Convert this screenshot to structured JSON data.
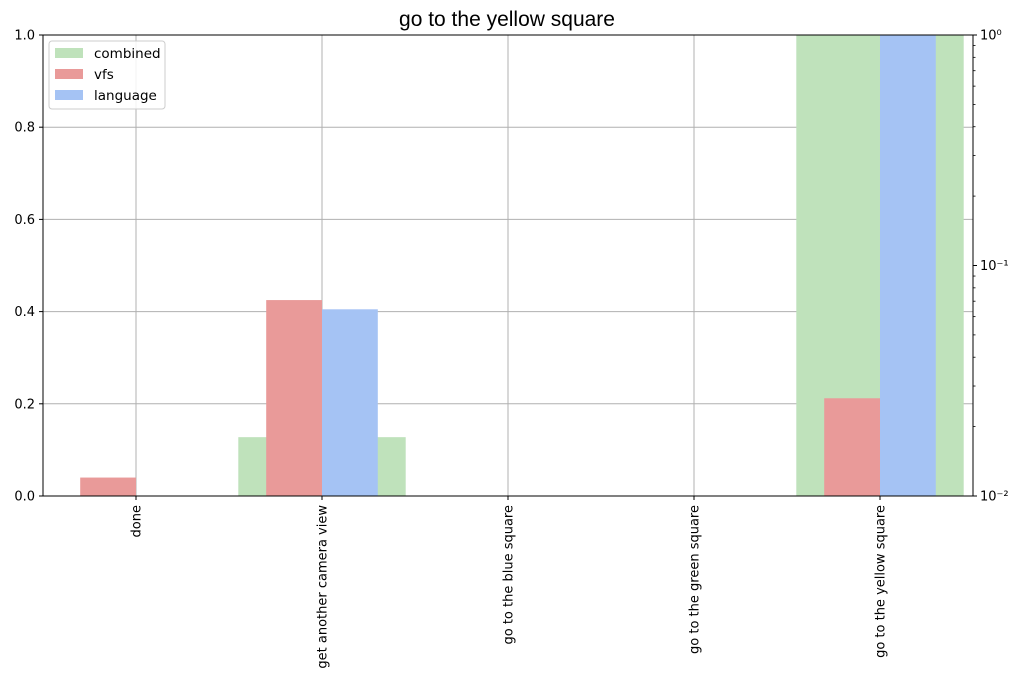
{
  "chart_data": {
    "type": "bar",
    "title": "go to the yellow square",
    "categories": [
      "done",
      "get another camera view",
      "go to the blue square",
      "go to the green square",
      "go to the yellow square"
    ],
    "series": [
      {
        "name": "combined",
        "color": "#bfe2bb",
        "axis": "right",
        "scale": "log",
        "values": [
          0,
          0.018,
          0,
          0,
          1.0
        ]
      },
      {
        "name": "vfs",
        "color": "#e99a99",
        "axis": "left",
        "scale": "linear",
        "values": [
          0.04,
          0.425,
          0,
          0,
          0.212
        ]
      },
      {
        "name": "language",
        "color": "#a5c3f4",
        "axis": "left",
        "scale": "linear",
        "values": [
          0,
          0.405,
          0,
          0,
          1.0
        ]
      }
    ],
    "y_left": {
      "ylim": [
        0,
        1.0
      ],
      "ticks": [
        "0.0",
        "0.2",
        "0.4",
        "0.6",
        "0.8",
        "1.0"
      ],
      "tick_values": [
        0,
        0.2,
        0.4,
        0.6,
        0.8,
        1.0
      ]
    },
    "y_right": {
      "scale": "log",
      "ylim": [
        0.01,
        1
      ],
      "ticks": [
        "10⁻²",
        "10⁻¹",
        "10⁰"
      ],
      "tick_values": [
        0.01,
        0.1,
        1
      ]
    },
    "xlabel": "",
    "ylabel": "",
    "grid": true,
    "legend_position": "top-left"
  }
}
